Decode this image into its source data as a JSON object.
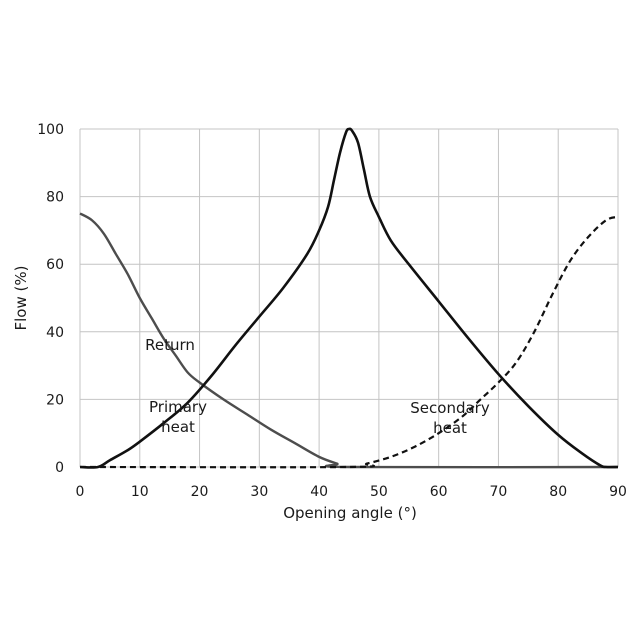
{
  "chart_data": {
    "type": "line",
    "xlabel": "Opening angle (°)",
    "ylabel": "Flow (%)",
    "xlim": [
      0,
      90
    ],
    "ylim": [
      0,
      100
    ],
    "xticks": [
      "0",
      "10",
      "20",
      "30",
      "40",
      "50",
      "60",
      "70",
      "80",
      "90"
    ],
    "yticks": [
      "0",
      "20",
      "40",
      "60",
      "80",
      "100"
    ],
    "grid": true,
    "colors": {
      "return": "#4d4d4d",
      "primary": "#111111",
      "secondary": "#111111",
      "grid": "#c4c4c4"
    },
    "annotations": [
      {
        "lines": [
          "Return"
        ]
      },
      {
        "lines": [
          "Primary",
          "heat"
        ]
      },
      {
        "lines": [
          "Secondary",
          "heat"
        ]
      }
    ],
    "series": [
      {
        "style": "solid-gray",
        "points": [
          [
            0,
            75
          ],
          [
            2,
            73
          ],
          [
            4,
            69
          ],
          [
            6,
            63
          ],
          [
            8,
            57
          ],
          [
            10,
            50
          ],
          [
            12,
            44
          ],
          [
            14,
            38
          ],
          [
            16,
            33
          ],
          [
            18,
            28
          ],
          [
            20,
            25
          ],
          [
            24,
            20
          ],
          [
            28,
            15.5
          ],
          [
            32,
            11
          ],
          [
            36,
            7
          ],
          [
            40,
            3
          ],
          [
            43,
            1
          ],
          [
            45,
            0
          ],
          [
            90,
            0
          ]
        ]
      },
      {
        "style": "solid-black",
        "points": [
          [
            0,
            0
          ],
          [
            3,
            0
          ],
          [
            5,
            2
          ],
          [
            8,
            5
          ],
          [
            10,
            7.5
          ],
          [
            14,
            13
          ],
          [
            18,
            19
          ],
          [
            22,
            27
          ],
          [
            26,
            36
          ],
          [
            30,
            44.5
          ],
          [
            34,
            53
          ],
          [
            38,
            63
          ],
          [
            40,
            70
          ],
          [
            41.5,
            77
          ],
          [
            42.5,
            85
          ],
          [
            43.5,
            93
          ],
          [
            44.5,
            99
          ],
          [
            45,
            100
          ],
          [
            45.5,
            99.5
          ],
          [
            46.5,
            96
          ],
          [
            47.5,
            88
          ],
          [
            48.5,
            80
          ],
          [
            50,
            74
          ],
          [
            52,
            67
          ],
          [
            55,
            60
          ],
          [
            60,
            49
          ],
          [
            65,
            38
          ],
          [
            70,
            27.5
          ],
          [
            75,
            18
          ],
          [
            80,
            9.5
          ],
          [
            84,
            4
          ],
          [
            87,
            0.5
          ],
          [
            88,
            0
          ],
          [
            90,
            0
          ]
        ]
      },
      {
        "style": "dashed",
        "points": [
          [
            0,
            0
          ],
          [
            45,
            0
          ],
          [
            48,
            1
          ],
          [
            52,
            3
          ],
          [
            56,
            6
          ],
          [
            60,
            10
          ],
          [
            64,
            15
          ],
          [
            67,
            20
          ],
          [
            70,
            25
          ],
          [
            73,
            31
          ],
          [
            76,
            40
          ],
          [
            79,
            51
          ],
          [
            82,
            61
          ],
          [
            85,
            68
          ],
          [
            88,
            73
          ],
          [
            90,
            74
          ]
        ]
      }
    ]
  }
}
